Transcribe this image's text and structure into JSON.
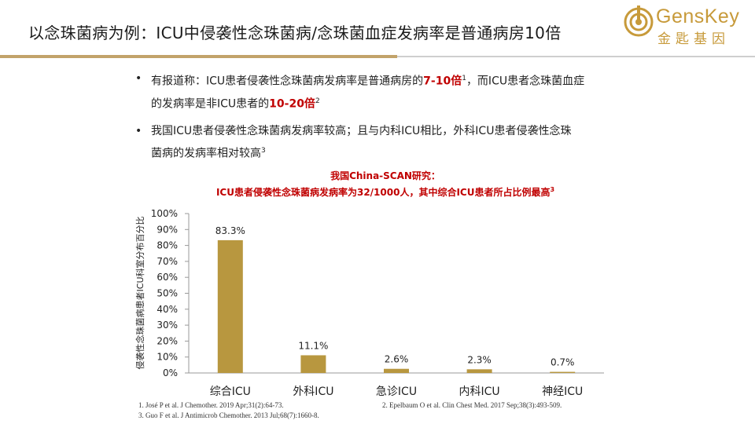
{
  "header": {
    "title": "以念珠菌病为例：ICU中侵袭性念珠菌病/念珠菌血症发病率是普通病房10倍",
    "logo_en": "GensKey",
    "logo_cn": "金匙基因"
  },
  "bullets": [
    {
      "line1_a": "有报道称：ICU患者侵袭性念珠菌病发病率是普通病房的",
      "line1_hl": "7-10倍",
      "line1_sup": "1",
      "line1_b": "，而ICU患者念珠菌血症",
      "line2_a": "的发病率是非ICU患者的",
      "line2_hl": "10-20倍",
      "line2_sup": "2"
    },
    {
      "line1": "我国ICU患者侵袭性念珠菌病发病率较高；且与内科ICU相比，外科ICU患者侵袭性念珠",
      "line2": "菌病的发病率相对较高",
      "line2_sup": "3"
    }
  ],
  "study": {
    "line1": "我国China-SCAN研究：",
    "line2": "ICU患者侵袭性念珠菌病发病率为32/1000人，其中综合ICU患者所占比例最高",
    "line2_sup": "3"
  },
  "chart_data": {
    "type": "bar",
    "categories": [
      "综合ICU",
      "外科ICU",
      "急诊ICU",
      "内科ICU",
      "神经ICU"
    ],
    "values": [
      83.3,
      11.1,
      2.6,
      2.3,
      0.7
    ],
    "value_labels": [
      "83.3%",
      "11.1%",
      "2.6%",
      "2.3%",
      "0.7%"
    ],
    "ylabel": "侵袭性念珠菌病患者ICU科室分布百分比",
    "ylim": [
      0,
      100
    ],
    "yticks": [
      "0%",
      "10%",
      "20%",
      "30%",
      "40%",
      "50%",
      "60%",
      "70%",
      "80%",
      "90%",
      "100%"
    ],
    "bar_color": "#b8973f",
    "grid": false,
    "legend": "none"
  },
  "references": [
    "1. José P et al. J Chemother. 2019 Apr;31(2):64-73.",
    "2. Epelbaum O et al. Clin Chest Med. 2017 Sep;38(3):493-509.",
    "3. Guo F et al. J Antimicrob Chemother. 2013 Jul;68(7):1660-8."
  ],
  "colors": {
    "accent_gold": "#c2a36a",
    "highlight_red": "#c00000",
    "logo_gold": "#c79a3a"
  }
}
